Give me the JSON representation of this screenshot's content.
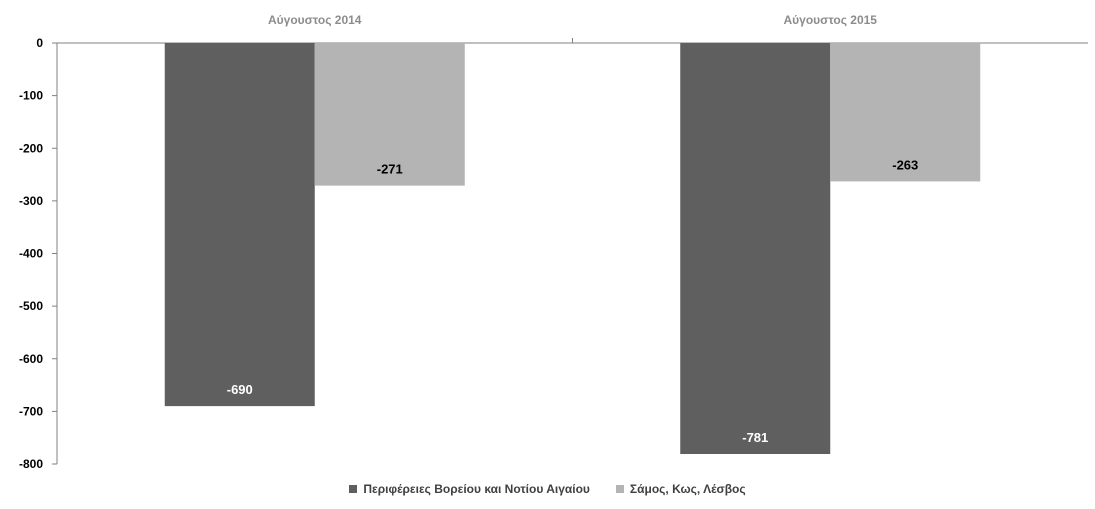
{
  "chart_data": {
    "type": "bar",
    "categories": [
      "Αύγουστος 2014",
      "Αύγουστος 2015"
    ],
    "series": [
      {
        "name": "Περιφέρειες Βορείου και Νοτίου Αιγαίου",
        "values": [
          -690,
          -781
        ],
        "color": "#5f5f5f",
        "label_color": "#ffffff"
      },
      {
        "name": "Σάμος, Κως, Λέσβος",
        "values": [
          -271,
          -263
        ],
        "color": "#b4b4b4",
        "label_color": "#000000"
      }
    ],
    "yticks": [
      0,
      -100,
      -200,
      -300,
      -400,
      -500,
      -600,
      -700,
      -800
    ],
    "ylim": [
      -800,
      0
    ],
    "category_labels_position": "top",
    "legend_position": "bottom",
    "grid": false
  }
}
